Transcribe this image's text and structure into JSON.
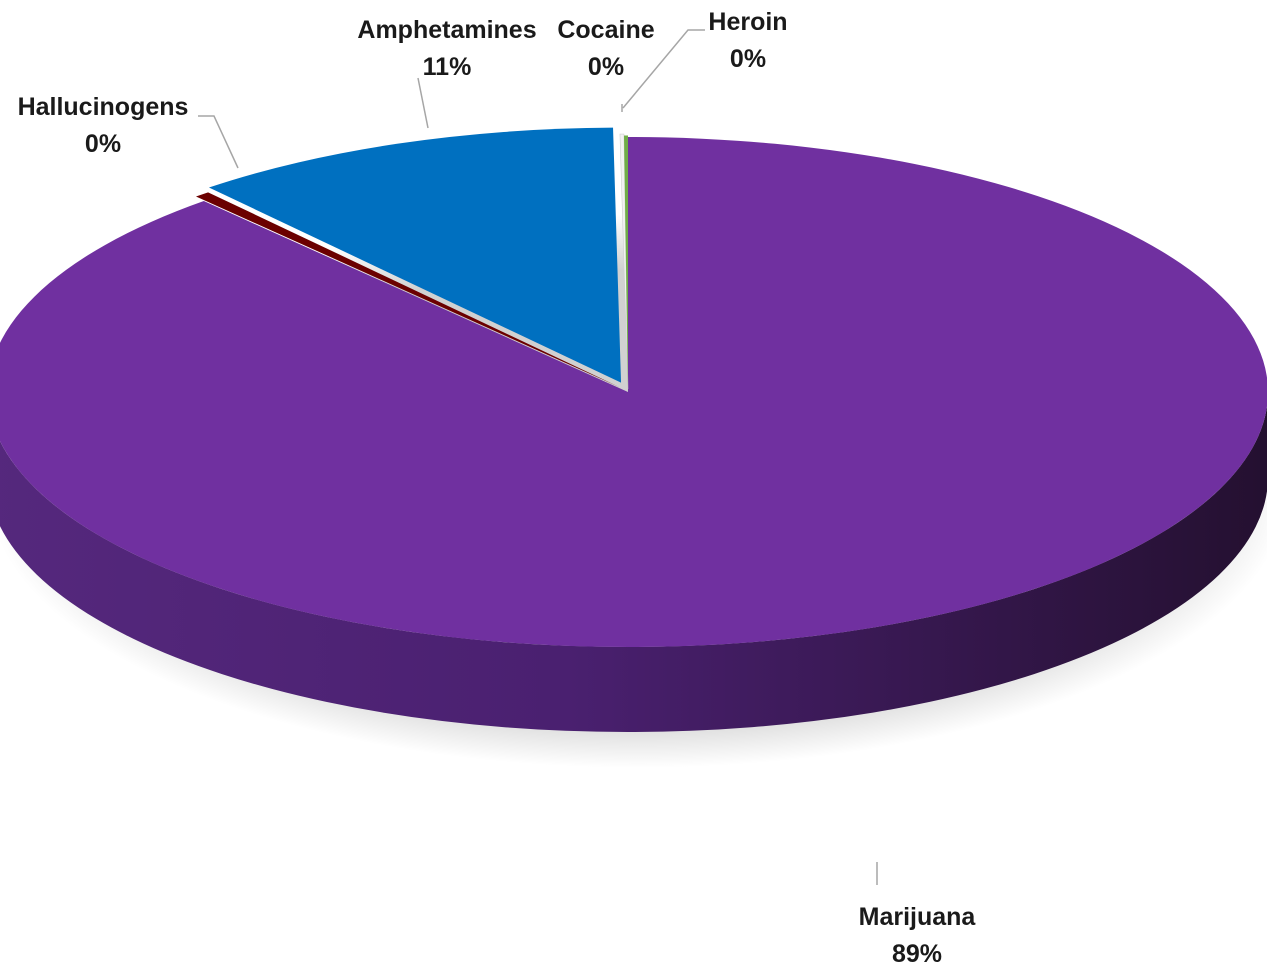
{
  "chart_data": {
    "type": "pie",
    "style": "3d-exploded",
    "title": "",
    "slices": [
      {
        "name": "Marijuana",
        "value": 89,
        "percent_label": "89%",
        "color": "#7030a0"
      },
      {
        "name": "Hallucinogens",
        "value": 0.4,
        "percent_label": "0%",
        "color": "#6b0000"
      },
      {
        "name": "Amphetamines",
        "value": 11,
        "percent_label": "11%",
        "color": "#0070c0"
      },
      {
        "name": "Cocaine",
        "value": 0.1,
        "percent_label": "0%",
        "color": "#f2f2f2"
      },
      {
        "name": "Heroin",
        "value": 0.1,
        "percent_label": "0%",
        "color": "#70ad47"
      }
    ],
    "legend": "none",
    "data_labels": "category-and-percent"
  }
}
